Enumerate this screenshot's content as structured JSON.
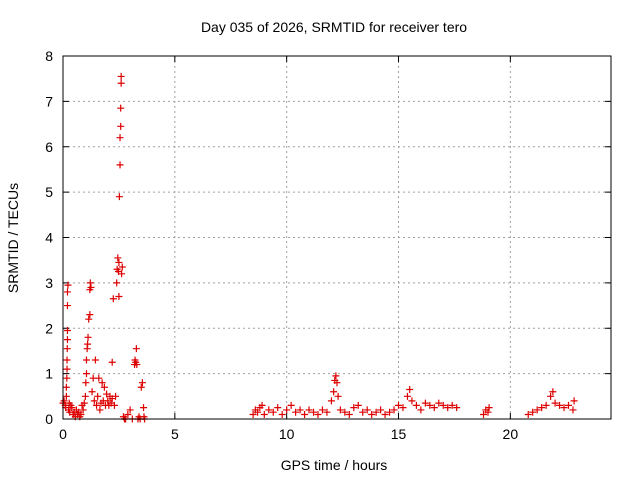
{
  "chart_data": {
    "type": "scatter",
    "title": "Day 035 of 2026, SRMTID for receiver tero",
    "xlabel": "GPS time / hours",
    "ylabel": "SRMTID / TECUs",
    "xlim": [
      0,
      24.5
    ],
    "ylim": [
      0,
      8
    ],
    "x_ticks": [
      0,
      5,
      10,
      15,
      20
    ],
    "y_ticks": [
      0,
      1,
      2,
      3,
      4,
      5,
      6,
      7,
      8
    ],
    "x_tick_labels": [
      "0",
      "5",
      "10",
      "15",
      "20"
    ],
    "y_tick_labels": [
      "0",
      "1",
      "2",
      "3",
      "4",
      "5",
      "6",
      "7",
      "8"
    ],
    "grid": true,
    "marker": "+",
    "color": "#dd0000",
    "series": [
      {
        "name": "SRMTID",
        "points": [
          [
            0.0,
            0.35
          ],
          [
            0.05,
            0.4
          ],
          [
            0.1,
            0.3
          ],
          [
            0.12,
            0.25
          ],
          [
            0.15,
            0.5
          ],
          [
            0.15,
            0.7
          ],
          [
            0.17,
            0.9
          ],
          [
            0.18,
            1.1
          ],
          [
            0.18,
            1.3
          ],
          [
            0.19,
            1.55
          ],
          [
            0.2,
            1.75
          ],
          [
            0.2,
            1.95
          ],
          [
            0.2,
            2.5
          ],
          [
            0.2,
            2.8
          ],
          [
            0.22,
            2.95
          ],
          [
            0.25,
            0.2
          ],
          [
            0.28,
            0.35
          ],
          [
            0.3,
            0.15
          ],
          [
            0.35,
            0.3
          ],
          [
            0.4,
            0.25
          ],
          [
            0.45,
            0.1
          ],
          [
            0.5,
            0.15
          ],
          [
            0.55,
            0.05
          ],
          [
            0.6,
            0.2
          ],
          [
            0.65,
            0.1
          ],
          [
            0.7,
            0.15
          ],
          [
            0.75,
            0.05
          ],
          [
            0.8,
            0.1
          ],
          [
            0.85,
            0.3
          ],
          [
            0.9,
            0.2
          ],
          [
            0.95,
            0.35
          ],
          [
            1.0,
            0.5
          ],
          [
            1.02,
            0.8
          ],
          [
            1.05,
            1.0
          ],
          [
            1.05,
            1.3
          ],
          [
            1.08,
            1.55
          ],
          [
            1.1,
            1.65
          ],
          [
            1.12,
            1.8
          ],
          [
            1.15,
            2.2
          ],
          [
            1.2,
            2.3
          ],
          [
            1.2,
            2.85
          ],
          [
            1.22,
            3.0
          ],
          [
            1.25,
            2.9
          ],
          [
            1.3,
            0.6
          ],
          [
            1.35,
            0.9
          ],
          [
            1.4,
            0.4
          ],
          [
            1.45,
            1.3
          ],
          [
            1.5,
            0.3
          ],
          [
            1.55,
            0.5
          ],
          [
            1.6,
            0.9
          ],
          [
            1.65,
            0.2
          ],
          [
            1.7,
            0.35
          ],
          [
            1.75,
            0.8
          ],
          [
            1.8,
            0.4
          ],
          [
            1.85,
            0.7
          ],
          [
            1.9,
            0.3
          ],
          [
            1.95,
            0.55
          ],
          [
            2.0,
            0.4
          ],
          [
            2.05,
            0.3
          ],
          [
            2.1,
            0.5
          ],
          [
            2.15,
            0.35
          ],
          [
            2.2,
            0.45
          ],
          [
            2.2,
            1.25
          ],
          [
            2.25,
            2.65
          ],
          [
            2.3,
            0.3
          ],
          [
            2.35,
            0.5
          ],
          [
            2.4,
            3.0
          ],
          [
            2.42,
            3.3
          ],
          [
            2.45,
            3.55
          ],
          [
            2.48,
            3.25
          ],
          [
            2.5,
            3.45
          ],
          [
            2.5,
            2.7
          ],
          [
            2.52,
            4.9
          ],
          [
            2.55,
            5.6
          ],
          [
            2.55,
            6.2
          ],
          [
            2.58,
            6.45
          ],
          [
            2.58,
            6.85
          ],
          [
            2.6,
            7.4
          ],
          [
            2.6,
            7.55
          ],
          [
            2.62,
            3.2
          ],
          [
            2.65,
            3.35
          ],
          [
            2.7,
            0.05
          ],
          [
            2.75,
            0.0
          ],
          [
            2.8,
            0.0
          ],
          [
            2.9,
            0.1
          ],
          [
            3.0,
            0.2
          ],
          [
            3.1,
            0.0
          ],
          [
            3.2,
            1.2
          ],
          [
            3.22,
            1.3
          ],
          [
            3.25,
            1.25
          ],
          [
            3.28,
            1.55
          ],
          [
            3.3,
            1.2
          ],
          [
            3.35,
            0.0
          ],
          [
            3.4,
            0.05
          ],
          [
            3.45,
            0.0
          ],
          [
            3.5,
            0.7
          ],
          [
            3.55,
            0.8
          ],
          [
            3.6,
            0.25
          ],
          [
            3.62,
            0.05
          ],
          [
            3.65,
            0.0
          ],
          [
            8.5,
            0.1
          ],
          [
            8.6,
            0.2
          ],
          [
            8.7,
            0.15
          ],
          [
            8.8,
            0.25
          ],
          [
            8.9,
            0.3
          ],
          [
            9.0,
            0.1
          ],
          [
            9.2,
            0.2
          ],
          [
            9.4,
            0.15
          ],
          [
            9.6,
            0.25
          ],
          [
            9.8,
            0.1
          ],
          [
            10.0,
            0.2
          ],
          [
            10.2,
            0.3
          ],
          [
            10.4,
            0.15
          ],
          [
            10.6,
            0.2
          ],
          [
            10.8,
            0.1
          ],
          [
            11.0,
            0.2
          ],
          [
            11.2,
            0.15
          ],
          [
            11.4,
            0.1
          ],
          [
            11.6,
            0.2
          ],
          [
            11.8,
            0.15
          ],
          [
            12.0,
            0.4
          ],
          [
            12.1,
            0.6
          ],
          [
            12.15,
            0.85
          ],
          [
            12.2,
            0.95
          ],
          [
            12.25,
            0.8
          ],
          [
            12.3,
            0.5
          ],
          [
            12.4,
            0.2
          ],
          [
            12.6,
            0.15
          ],
          [
            12.8,
            0.1
          ],
          [
            13.0,
            0.25
          ],
          [
            13.2,
            0.3
          ],
          [
            13.4,
            0.15
          ],
          [
            13.6,
            0.2
          ],
          [
            13.8,
            0.1
          ],
          [
            14.0,
            0.15
          ],
          [
            14.2,
            0.2
          ],
          [
            14.4,
            0.1
          ],
          [
            14.6,
            0.15
          ],
          [
            14.8,
            0.2
          ],
          [
            15.0,
            0.3
          ],
          [
            15.2,
            0.25
          ],
          [
            15.4,
            0.5
          ],
          [
            15.5,
            0.65
          ],
          [
            15.6,
            0.4
          ],
          [
            15.8,
            0.3
          ],
          [
            16.0,
            0.2
          ],
          [
            16.2,
            0.35
          ],
          [
            16.4,
            0.3
          ],
          [
            16.6,
            0.25
          ],
          [
            16.8,
            0.35
          ],
          [
            17.0,
            0.3
          ],
          [
            17.2,
            0.25
          ],
          [
            17.4,
            0.3
          ],
          [
            17.6,
            0.25
          ],
          [
            18.8,
            0.1
          ],
          [
            18.9,
            0.2
          ],
          [
            19.0,
            0.15
          ],
          [
            19.05,
            0.25
          ],
          [
            20.8,
            0.1
          ],
          [
            21.0,
            0.15
          ],
          [
            21.2,
            0.2
          ],
          [
            21.4,
            0.25
          ],
          [
            21.6,
            0.3
          ],
          [
            21.8,
            0.5
          ],
          [
            21.9,
            0.6
          ],
          [
            22.0,
            0.35
          ],
          [
            22.2,
            0.3
          ],
          [
            22.4,
            0.25
          ],
          [
            22.6,
            0.3
          ],
          [
            22.8,
            0.2
          ],
          [
            22.85,
            0.4
          ]
        ]
      }
    ]
  }
}
